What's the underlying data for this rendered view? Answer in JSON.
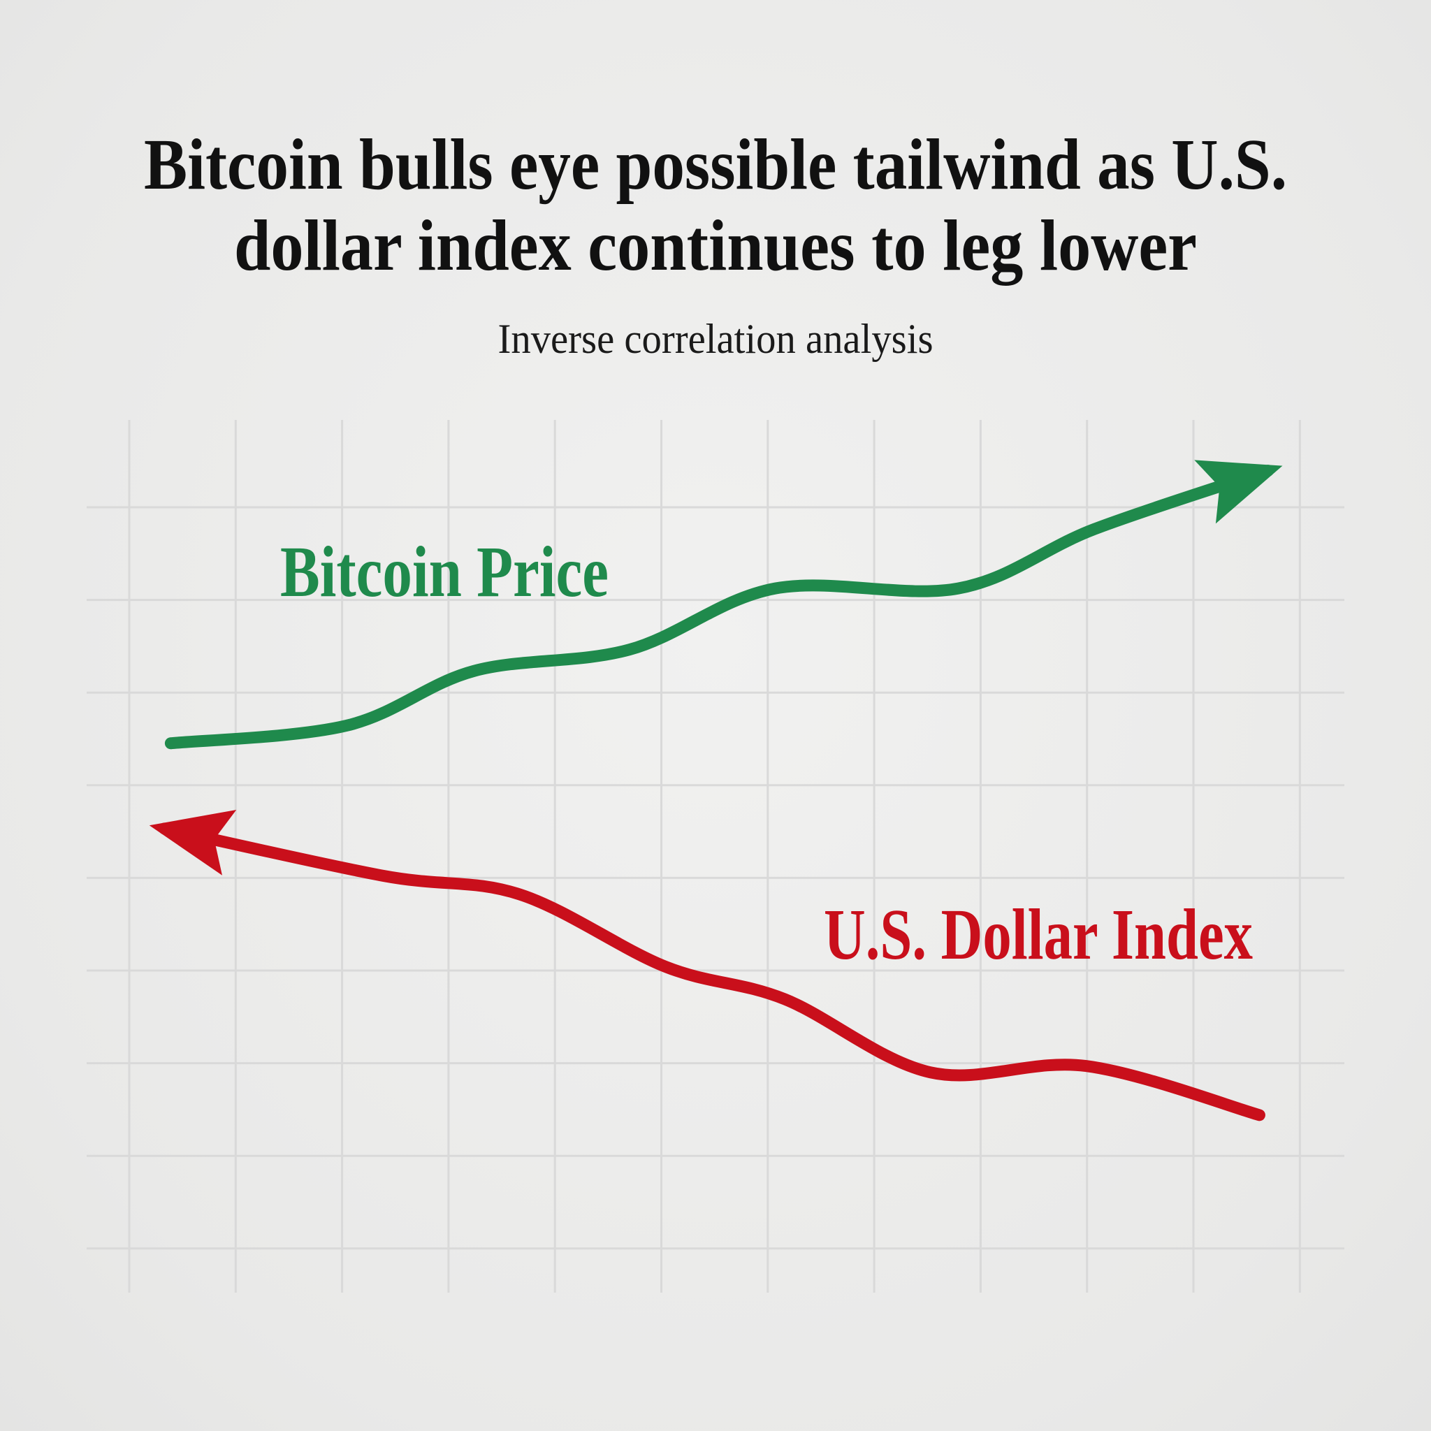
{
  "title_lines": [
    "Bitcoin bulls eye possible tailwind as U.S.",
    "dollar index continues to leg lower"
  ],
  "subtitle": "Inverse correlation analysis",
  "colors": {
    "bitcoin": "#1f8a4c",
    "dollar": "#c90f1b",
    "grid": "#d9d9d9",
    "text": "#111111"
  },
  "chart_data": {
    "type": "line",
    "grid": true,
    "axes_labels_shown": false,
    "series": [
      {
        "name": "Bitcoin Price",
        "color": "#1f8a4c",
        "arrow": "end",
        "x": [
          0.39,
          2.04,
          3.24,
          4.7,
          6.07,
          7.79,
          9.07,
          10.7
        ],
        "y": [
          5.91,
          6.1,
          6.69,
          6.92,
          7.58,
          7.58,
          8.22,
          8.85
        ]
      },
      {
        "name": "U.S. Dollar Index",
        "color": "#c90f1b",
        "arrow": "start",
        "x": [
          0.33,
          2.39,
          3.67,
          5.04,
          6.16,
          7.53,
          8.99,
          10.62
        ],
        "y": [
          4.99,
          4.48,
          4.28,
          3.5,
          3.15,
          2.36,
          2.43,
          1.9
        ]
      }
    ]
  }
}
